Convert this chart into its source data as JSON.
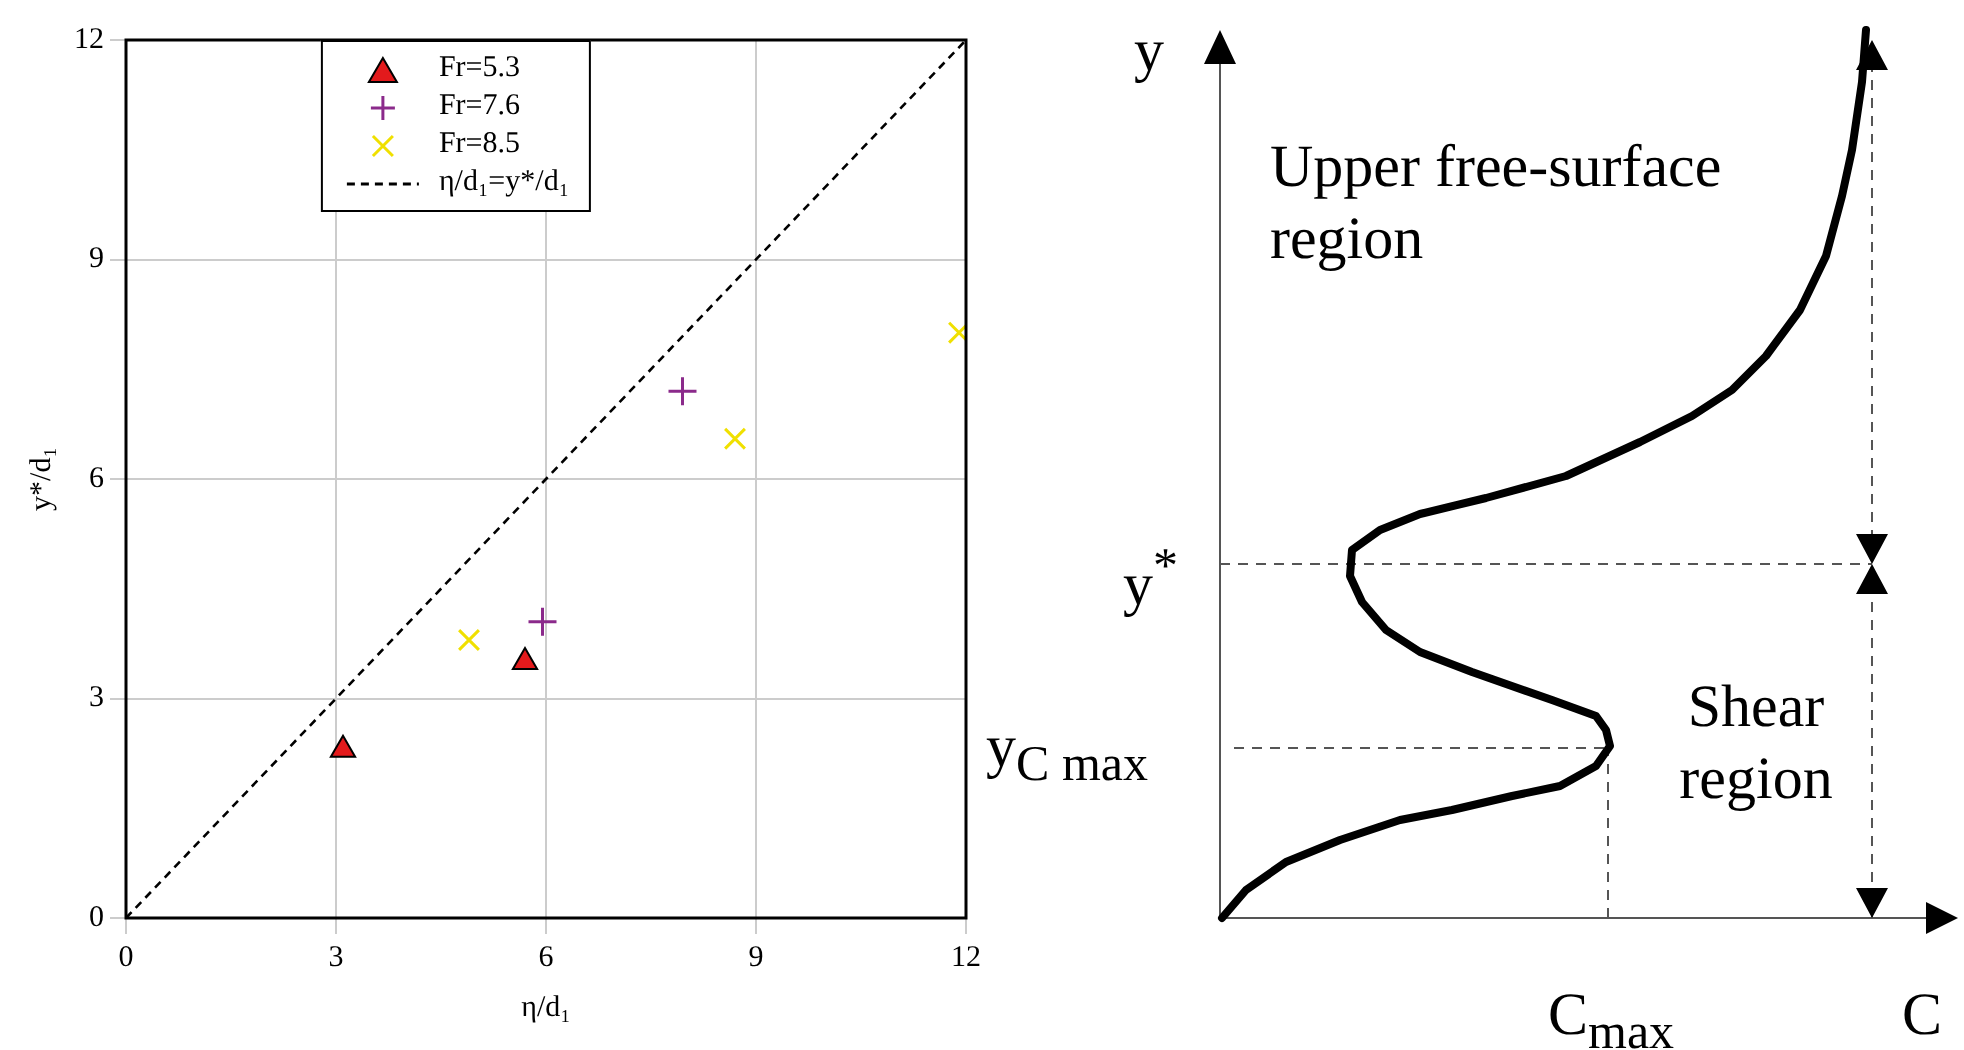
{
  "chart_data": [
    {
      "type": "scatter",
      "xlabel": "η/d₁",
      "ylabel": "y*/d₁",
      "xlim": [
        0,
        12
      ],
      "ylim": [
        0,
        12
      ],
      "xticks": [
        0,
        3,
        6,
        9,
        12
      ],
      "yticks": [
        0,
        3,
        6,
        9,
        12
      ],
      "grid": true,
      "legend": "top",
      "series": [
        {
          "name": "Fr=5.3",
          "color": "#e31a1c",
          "marker": "triangle",
          "x": [
            3.1,
            5.7
          ],
          "values": [
            2.3,
            3.5
          ]
        },
        {
          "name": "Fr=7.6",
          "color": "#8b2a8b",
          "marker": "cross",
          "x": [
            5.95,
            7.95
          ],
          "values": [
            4.05,
            7.2
          ]
        },
        {
          "name": "Fr=8.5",
          "color": "#f0e000",
          "marker": "x",
          "x": [
            4.9,
            8.7,
            11.9
          ],
          "values": [
            3.8,
            6.55,
            8.0
          ]
        },
        {
          "name": "η/d₁=y*/d₁",
          "type": "line",
          "color": "#000000",
          "line_style": "dashed",
          "marker": "none",
          "x": [
            0,
            12
          ],
          "values": [
            0,
            12
          ]
        }
      ]
    },
    {
      "type": "other",
      "xlabel": "C",
      "ylabel": "y",
      "annotations": [
        "Upper free-surface region",
        "Shear region",
        "y$^{*}$",
        "y$_{C max}$",
        "C$_{max}$"
      ]
    }
  ]
}
